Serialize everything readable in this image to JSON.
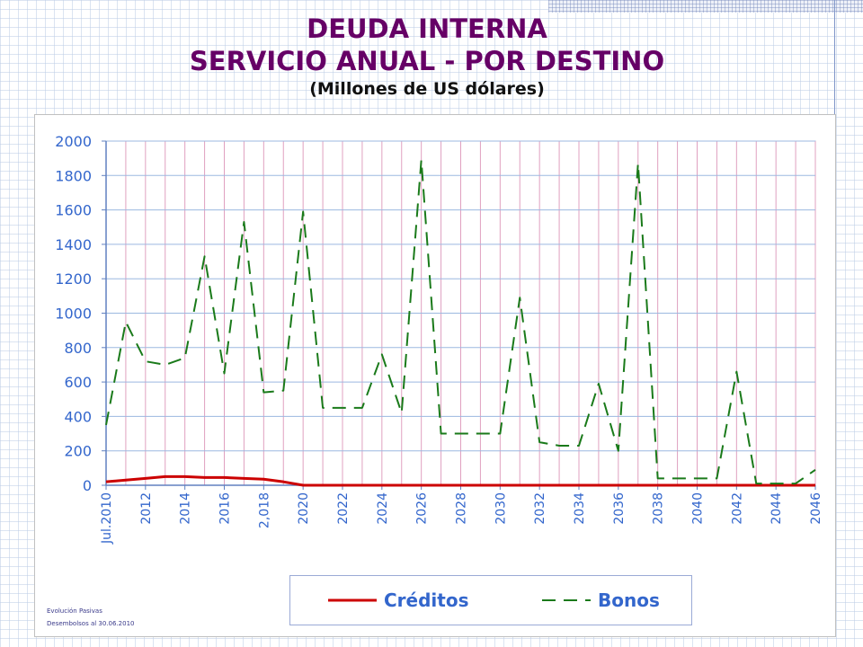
{
  "title_lines": [
    "DEUDA INTERNA",
    "SERVICIO ANUAL - POR DESTINO"
  ],
  "subtitle": "(Millones de US dólares)",
  "footnote": {
    "line1": "Evolución Pasivas",
    "line2": "Desembolsos al 30.06.2010"
  },
  "legend": {
    "creditos": "Créditos",
    "bonos": "Bonos"
  },
  "colors": {
    "creditos": "#cc0000",
    "bonos": "#1a7a1a",
    "axis_text": "#3366cc",
    "title": "#660066",
    "vgrid": "#e0a0c0",
    "hgrid": "#9cb8e0"
  },
  "chart_data": {
    "type": "line",
    "title": "DEUDA INTERNA SERVICIO ANUAL - POR DESTINO",
    "subtitle": "(Millones de US dólares)",
    "x": [
      2010,
      2011,
      2012,
      2013,
      2014,
      2015,
      2016,
      2017,
      2018,
      2019,
      2020,
      2021,
      2022,
      2023,
      2024,
      2025,
      2026,
      2027,
      2028,
      2029,
      2030,
      2031,
      2032,
      2033,
      2034,
      2035,
      2036,
      2037,
      2038,
      2039,
      2040,
      2041,
      2042,
      2043,
      2044,
      2045,
      2046
    ],
    "x_tick_labels": [
      {
        "x": 2010,
        "label": "Jul.2010"
      },
      {
        "x": 2012,
        "label": "2012"
      },
      {
        "x": 2014,
        "label": "2014"
      },
      {
        "x": 2016,
        "label": "2016"
      },
      {
        "x": 2018,
        "label": "2,018"
      },
      {
        "x": 2020,
        "label": "2020"
      },
      {
        "x": 2022,
        "label": "2022"
      },
      {
        "x": 2024,
        "label": "2024"
      },
      {
        "x": 2026,
        "label": "2026"
      },
      {
        "x": 2028,
        "label": "2028"
      },
      {
        "x": 2030,
        "label": "2030"
      },
      {
        "x": 2032,
        "label": "2032"
      },
      {
        "x": 2034,
        "label": "2034"
      },
      {
        "x": 2036,
        "label": "2036"
      },
      {
        "x": 2038,
        "label": "2038"
      },
      {
        "x": 2040,
        "label": "2040"
      },
      {
        "x": 2042,
        "label": "2042"
      },
      {
        "x": 2044,
        "label": "2044"
      },
      {
        "x": 2046,
        "label": "2046"
      }
    ],
    "y_ticks": [
      0,
      200,
      400,
      600,
      800,
      1000,
      1200,
      1400,
      1600,
      1800,
      2000
    ],
    "ylim": [
      0,
      2000
    ],
    "xlim": [
      2010,
      2046
    ],
    "series": [
      {
        "name": "Créditos",
        "style": "solid",
        "values": [
          20,
          30,
          40,
          50,
          50,
          45,
          45,
          40,
          35,
          20,
          0,
          0,
          0,
          0,
          0,
          0,
          0,
          0,
          0,
          0,
          0,
          0,
          0,
          0,
          0,
          0,
          0,
          0,
          0,
          0,
          0,
          0,
          0,
          0,
          0,
          0,
          0
        ]
      },
      {
        "name": "Bonos",
        "style": "dashed",
        "values": [
          350,
          950,
          720,
          700,
          740,
          1330,
          650,
          1530,
          540,
          550,
          1590,
          450,
          450,
          450,
          760,
          420,
          1890,
          300,
          300,
          300,
          300,
          1090,
          250,
          230,
          230,
          590,
          200,
          1870,
          40,
          40,
          40,
          40,
          660,
          10,
          10,
          10,
          90
        ]
      }
    ],
    "legend_position": "bottom",
    "grid": true
  }
}
